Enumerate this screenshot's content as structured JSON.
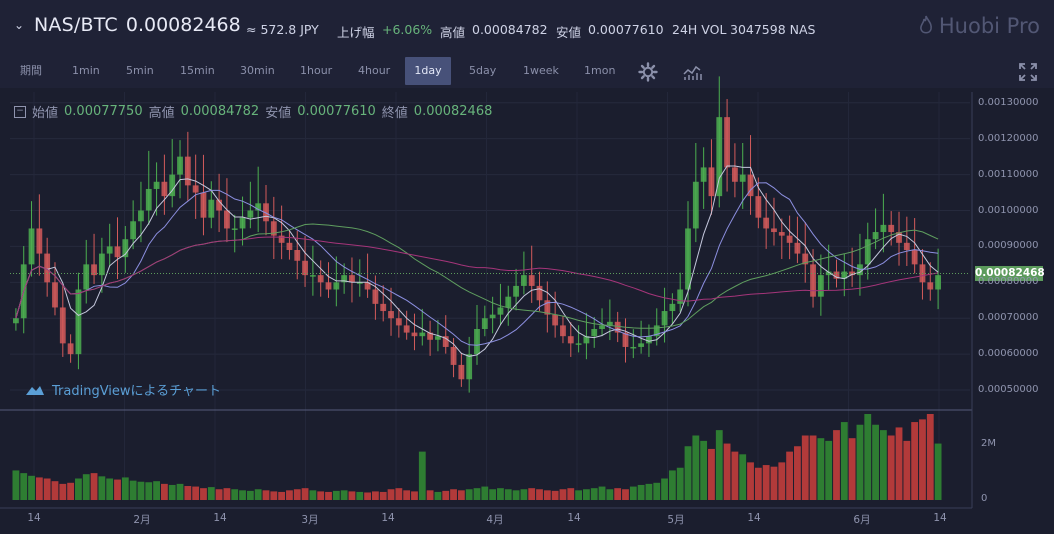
{
  "header": {
    "pair": "NAS/BTC",
    "price": "0.00082468",
    "jpy": "≈ 572.8 JPY",
    "change_label": "上げ幅",
    "change_value": "+6.06%",
    "high_label": "高値",
    "high_value": "0.00084782",
    "low_label": "安値",
    "low_value": "0.00077610",
    "volume_label": "24H VOL",
    "volume_value": "3047598 NAS",
    "logo": "Huobi Pro"
  },
  "toolbar": {
    "items": [
      "期間",
      "1min",
      "5min",
      "15min",
      "30min",
      "1hour",
      "4hour",
      "1day",
      "5day",
      "1week",
      "1mon"
    ],
    "active": "1day",
    "settings_icon": "gear-icon",
    "indicators_icon": "chart-indicator-icon",
    "fullscreen_icon": "fullscreen-icon"
  },
  "ohlc": {
    "open_label": "始値",
    "open": "0.00077750",
    "high_label": "高値",
    "high": "0.00084782",
    "low_label": "安値",
    "low": "0.00077610",
    "close_label": "終値",
    "close": "0.00082468"
  },
  "watermark": "TradingViewによるチャート",
  "colors": {
    "up": "#2e7d32",
    "down": "#b23a3a",
    "up_bright": "#4caf50",
    "down_bright": "#d35b5b",
    "last_price": "#5c9b5c"
  },
  "chart_data": {
    "type": "candlestick",
    "last_price_label": "0.00082468",
    "ylim": [
      0.00045,
      0.00133
    ],
    "yticks": [
      "0.00130000",
      "0.00120000",
      "0.00110000",
      "0.00100000",
      "0.00090000",
      "0.00080000",
      "0.00070000",
      "0.00060000",
      "0.00050000"
    ],
    "volume_ticks": [
      "2M",
      "0"
    ],
    "xticks": [
      "14",
      "2月",
      "14",
      "3月",
      "14",
      "4月",
      "14",
      "5月",
      "14",
      "6月",
      "14"
    ],
    "close_series": [
      0.0007,
      0.00085,
      0.00095,
      0.00088,
      0.0008,
      0.00073,
      0.00063,
      0.0006,
      0.00078,
      0.00085,
      0.00082,
      0.00088,
      0.0009,
      0.00087,
      0.00092,
      0.00097,
      0.001,
      0.00106,
      0.00108,
      0.00104,
      0.0011,
      0.00115,
      0.00107,
      0.00105,
      0.00098,
      0.00103,
      0.001,
      0.00095,
      0.00095,
      0.00098,
      0.001,
      0.00102,
      0.00097,
      0.00093,
      0.00091,
      0.00089,
      0.00086,
      0.00082,
      0.00082,
      0.0008,
      0.00078,
      0.0008,
      0.00082,
      0.0008,
      0.0008,
      0.00078,
      0.00074,
      0.00072,
      0.0007,
      0.00068,
      0.00066,
      0.00065,
      0.00066,
      0.00064,
      0.00065,
      0.00062,
      0.00057,
      0.00053,
      0.0006,
      0.00067,
      0.0007,
      0.00071,
      0.00073,
      0.00076,
      0.00079,
      0.00082,
      0.00079,
      0.00075,
      0.00071,
      0.00068,
      0.00065,
      0.00063,
      0.00063,
      0.00065,
      0.00067,
      0.00068,
      0.00069,
      0.00066,
      0.00062,
      0.00062,
      0.00063,
      0.00065,
      0.00068,
      0.00072,
      0.00074,
      0.00078,
      0.00095,
      0.00108,
      0.00112,
      0.00104,
      0.00126,
      0.00112,
      0.00108,
      0.0011,
      0.00104,
      0.00098,
      0.00095,
      0.00094,
      0.00093,
      0.00091,
      0.00088,
      0.00085,
      0.00076,
      0.00082,
      0.00083,
      0.00081,
      0.00083,
      0.00082,
      0.00085,
      0.00092,
      0.00094,
      0.00096,
      0.00094,
      0.00091,
      0.00089,
      0.00085,
      0.0008,
      0.00078,
      0.00082
    ],
    "volume_series": [
      0.55,
      0.5,
      0.45,
      0.42,
      0.4,
      0.35,
      0.3,
      0.32,
      0.4,
      0.48,
      0.5,
      0.44,
      0.4,
      0.38,
      0.42,
      0.36,
      0.34,
      0.33,
      0.35,
      0.3,
      0.28,
      0.3,
      0.26,
      0.25,
      0.22,
      0.24,
      0.2,
      0.22,
      0.2,
      0.18,
      0.17,
      0.2,
      0.18,
      0.16,
      0.15,
      0.18,
      0.2,
      0.22,
      0.18,
      0.16,
      0.15,
      0.17,
      0.18,
      0.16,
      0.15,
      0.14,
      0.16,
      0.15,
      0.2,
      0.22,
      0.18,
      0.16,
      0.9,
      0.18,
      0.15,
      0.17,
      0.2,
      0.18,
      0.2,
      0.22,
      0.25,
      0.2,
      0.22,
      0.2,
      0.18,
      0.2,
      0.22,
      0.2,
      0.18,
      0.17,
      0.2,
      0.22,
      0.18,
      0.2,
      0.22,
      0.25,
      0.2,
      0.22,
      0.2,
      0.25,
      0.28,
      0.3,
      0.32,
      0.4,
      0.55,
      0.6,
      1.0,
      1.2,
      1.1,
      0.95,
      1.3,
      1.05,
      0.9,
      0.85,
      0.7,
      0.6,
      0.65,
      0.62,
      0.7,
      0.9,
      1.0,
      1.2,
      1.2,
      1.15,
      1.1,
      1.3,
      1.45,
      1.15,
      1.4,
      1.6,
      1.4,
      1.3,
      1.2,
      1.35,
      1.1,
      1.45,
      1.5,
      1.6,
      1.05
    ]
  }
}
